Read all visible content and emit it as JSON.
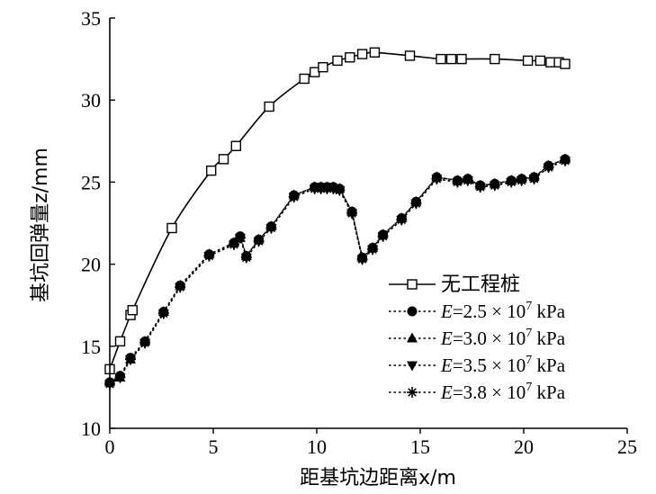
{
  "chart_data": {
    "type": "line",
    "xlabel": "距基坑边距离x/m",
    "ylabel": "基坑回弹量z/mm",
    "xlim": [
      0,
      25
    ],
    "ylim": [
      10,
      35
    ],
    "xticks": [
      0,
      5,
      10,
      15,
      20,
      25
    ],
    "yticks": [
      10,
      15,
      20,
      25,
      30,
      35
    ],
    "grid": false,
    "legend_position": "bottom-right",
    "series": [
      {
        "name": "无工程桩",
        "marker": "open-square",
        "line": "solid",
        "x": [
          0,
          0.5,
          1.0,
          1.1,
          3.0,
          4.9,
          5.5,
          6.1,
          7.7,
          9.4,
          9.9,
          10.3,
          11.0,
          11.6,
          12.2,
          12.8,
          14.5,
          16.0,
          16.5,
          17.0,
          18.6,
          20.2,
          20.8,
          21.3,
          21.7,
          22.0
        ],
        "y": [
          13.6,
          15.3,
          16.9,
          17.2,
          22.2,
          25.7,
          26.4,
          27.2,
          29.6,
          31.3,
          31.7,
          32.0,
          32.4,
          32.6,
          32.8,
          32.9,
          32.7,
          32.5,
          32.5,
          32.5,
          32.5,
          32.4,
          32.4,
          32.3,
          32.3,
          32.2
        ]
      },
      {
        "name": "=2.5 × 10 kPa",
        "marker": "circle",
        "line": "dotted",
        "x": [
          0,
          0.5,
          1.0,
          1.7,
          2.6,
          3.4,
          4.8,
          6.0,
          6.3,
          6.6,
          7.2,
          7.8,
          8.9,
          9.9,
          10.2,
          10.5,
          10.8,
          11.1,
          11.7,
          12.2,
          12.7,
          13.2,
          14.1,
          14.8,
          15.8,
          16.8,
          17.3,
          17.9,
          18.6,
          19.4,
          19.9,
          20.5,
          21.2,
          22.0
        ],
        "y": [
          12.8,
          13.2,
          14.3,
          15.3,
          17.1,
          18.7,
          20.6,
          21.3,
          21.7,
          20.5,
          21.5,
          22.3,
          24.2,
          24.7,
          24.7,
          24.7,
          24.7,
          24.6,
          23.2,
          20.4,
          21.0,
          21.8,
          22.8,
          23.8,
          25.3,
          25.1,
          25.2,
          24.8,
          24.9,
          25.1,
          25.2,
          25.3,
          26.0,
          26.4
        ]
      },
      {
        "name": "=3.0 × 10 kPa",
        "marker": "triangle-up",
        "line": "dotted",
        "x": [
          0,
          0.5,
          1.0,
          1.7,
          2.6,
          3.4,
          4.8,
          6.0,
          6.3,
          6.6,
          7.2,
          7.8,
          8.9,
          9.9,
          10.2,
          10.5,
          10.8,
          11.1,
          11.7,
          12.2,
          12.7,
          13.2,
          14.1,
          14.8,
          15.8,
          16.8,
          17.3,
          17.9,
          18.6,
          19.4,
          19.9,
          20.5,
          21.2,
          22.0
        ],
        "y": [
          12.8,
          13.1,
          14.2,
          15.3,
          17.1,
          18.7,
          20.6,
          21.3,
          21.6,
          20.5,
          21.5,
          22.3,
          24.2,
          24.7,
          24.7,
          24.7,
          24.7,
          24.6,
          23.2,
          20.4,
          21.0,
          21.8,
          22.8,
          23.8,
          25.3,
          25.1,
          25.2,
          24.8,
          24.9,
          25.1,
          25.2,
          25.3,
          26.0,
          26.4
        ]
      },
      {
        "name": "=3.5 × 10 kPa",
        "marker": "triangle-down",
        "line": "dotted",
        "x": [
          0,
          0.5,
          1.0,
          1.7,
          2.6,
          3.4,
          4.8,
          6.0,
          6.3,
          6.6,
          7.2,
          7.8,
          8.9,
          9.9,
          10.2,
          10.5,
          10.8,
          11.1,
          11.7,
          12.2,
          12.7,
          13.2,
          14.1,
          14.8,
          15.8,
          16.8,
          17.3,
          17.9,
          18.6,
          19.4,
          19.9,
          20.5,
          21.2,
          22.0
        ],
        "y": [
          12.7,
          13.1,
          14.2,
          15.2,
          17.0,
          18.6,
          20.5,
          21.2,
          21.6,
          20.4,
          21.4,
          22.2,
          24.1,
          24.6,
          24.6,
          24.6,
          24.6,
          24.5,
          23.1,
          20.3,
          20.9,
          21.7,
          22.7,
          23.7,
          25.2,
          25.0,
          25.1,
          24.7,
          24.8,
          25.0,
          25.1,
          25.2,
          25.9,
          26.3
        ]
      },
      {
        "name": "=3.8 × 10 kPa",
        "marker": "asterisk",
        "line": "dotted",
        "x": [
          0,
          0.5,
          1.0,
          1.7,
          2.6,
          3.4,
          4.8,
          6.0,
          6.3,
          6.6,
          7.2,
          7.8,
          8.9,
          9.9,
          10.2,
          10.5,
          10.8,
          11.1,
          11.7,
          12.2,
          12.7,
          13.2,
          14.1,
          14.8,
          15.8,
          16.8,
          17.3,
          17.9,
          18.6,
          19.4,
          19.9,
          20.5,
          21.2,
          22.0
        ],
        "y": [
          12.7,
          13.1,
          14.2,
          15.2,
          17.0,
          18.6,
          20.5,
          21.2,
          21.6,
          20.4,
          21.4,
          22.2,
          24.1,
          24.6,
          24.6,
          24.6,
          24.6,
          24.5,
          23.1,
          20.3,
          20.9,
          21.7,
          22.7,
          23.7,
          25.2,
          25.0,
          25.1,
          24.7,
          24.8,
          25.0,
          25.1,
          25.2,
          25.9,
          26.3
        ]
      }
    ],
    "legend": [
      {
        "prefix": "",
        "label": "无工程桩",
        "exponent": ""
      },
      {
        "prefix": "E",
        "label": "=2.5 × 10 kPa",
        "exponent": "7"
      },
      {
        "prefix": "E",
        "label": "=3.0 × 10 kPa",
        "exponent": "7"
      },
      {
        "prefix": "E",
        "label": "=3.5 × 10 kPa",
        "exponent": "7"
      },
      {
        "prefix": "E",
        "label": "=3.8 × 10 kPa",
        "exponent": "7"
      }
    ]
  }
}
